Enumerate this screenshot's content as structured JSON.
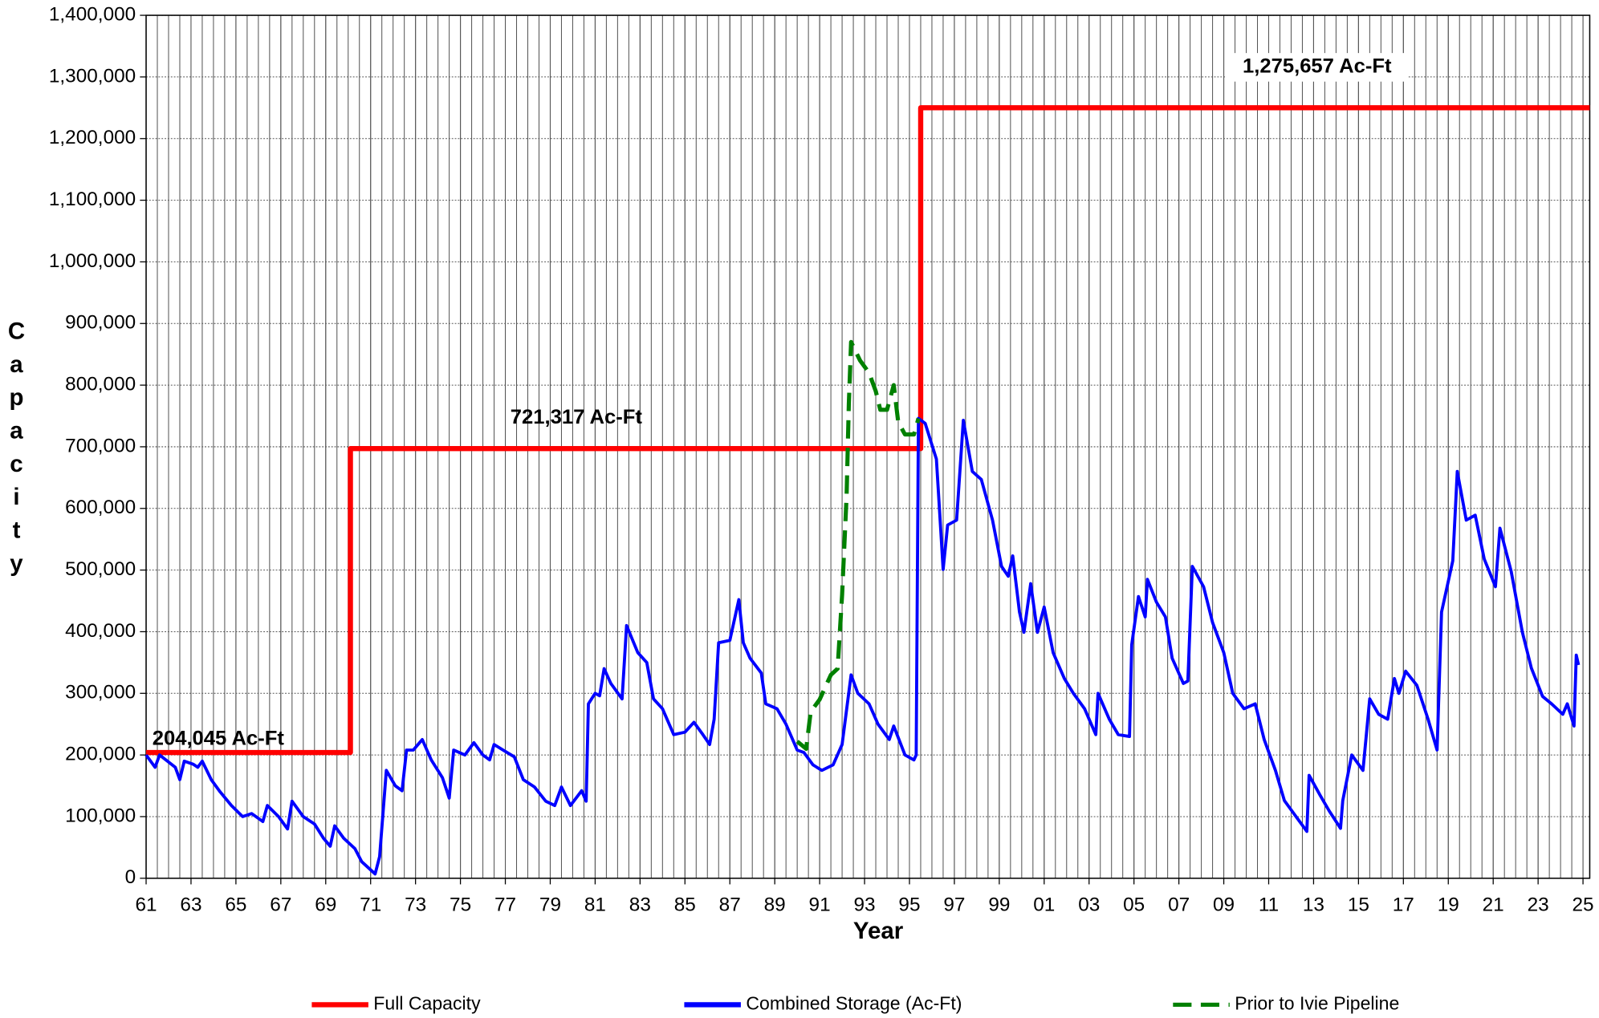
{
  "chart_data": {
    "type": "line",
    "xlabel": "Year",
    "ylabel": "Capacity",
    "xlim": [
      1961,
      2025.3
    ],
    "xticks": [
      {
        "value": 1961,
        "label": "61"
      },
      {
        "value": 1963,
        "label": "63"
      },
      {
        "value": 1965,
        "label": "65"
      },
      {
        "value": 1967,
        "label": "67"
      },
      {
        "value": 1969,
        "label": "69"
      },
      {
        "value": 1971,
        "label": "71"
      },
      {
        "value": 1973,
        "label": "73"
      },
      {
        "value": 1975,
        "label": "75"
      },
      {
        "value": 1977,
        "label": "77"
      },
      {
        "value": 1979,
        "label": "79"
      },
      {
        "value": 1981,
        "label": "81"
      },
      {
        "value": 1983,
        "label": "83"
      },
      {
        "value": 1985,
        "label": "85"
      },
      {
        "value": 1987,
        "label": "87"
      },
      {
        "value": 1989,
        "label": "89"
      },
      {
        "value": 1991,
        "label": "91"
      },
      {
        "value": 1993,
        "label": "93"
      },
      {
        "value": 1995,
        "label": "95"
      },
      {
        "value": 1997,
        "label": "97"
      },
      {
        "value": 1999,
        "label": "99"
      },
      {
        "value": 2001,
        "label": "01"
      },
      {
        "value": 2003,
        "label": "03"
      },
      {
        "value": 2005,
        "label": "05"
      },
      {
        "value": 2007,
        "label": "07"
      },
      {
        "value": 2009,
        "label": "09"
      },
      {
        "value": 2011,
        "label": "11"
      },
      {
        "value": 2013,
        "label": "13"
      },
      {
        "value": 2015,
        "label": "15"
      },
      {
        "value": 2017,
        "label": "17"
      },
      {
        "value": 2019,
        "label": "19"
      },
      {
        "value": 2021,
        "label": "21"
      },
      {
        "value": 2023,
        "label": "23"
      },
      {
        "value": 2025,
        "label": "25"
      }
    ],
    "ylim": [
      0,
      1400000
    ],
    "yticks": [
      0,
      {
        "value": 100000,
        "label": "100,000"
      },
      {
        "value": 200000,
        "label": "200,000"
      },
      {
        "value": 300000,
        "label": "300,000"
      },
      {
        "value": 400000,
        "label": "400,000"
      },
      {
        "value": 500000,
        "label": "500,000"
      },
      {
        "value": 600000,
        "label": "600,000"
      },
      {
        "value": 700000,
        "label": "700,000"
      },
      {
        "value": 800000,
        "label": "800,000"
      },
      {
        "value": 900000,
        "label": "900,000"
      },
      {
        "value": 1000000,
        "label": "1,000,000"
      },
      {
        "value": 1100000,
        "label": "1,100,000"
      },
      {
        "value": 1200000,
        "label": "1,200,000"
      },
      {
        "value": 1300000,
        "label": "1,300,000"
      },
      {
        "value": 1400000,
        "label": "1,400,000"
      }
    ],
    "grid": true,
    "legend": "bottom",
    "annotations": [
      "204,045 Ac-Ft",
      "721,317 Ac-Ft",
      "1,275,657 Ac-Ft"
    ],
    "series": [
      {
        "name": "Full Capacity",
        "color": "#ff0000",
        "dash": false,
        "x": [
          1961,
          1970.1,
          1970.1,
          1995.5,
          1995.5,
          2025.3
        ],
        "values": [
          204000,
          204000,
          697000,
          697000,
          1250000,
          1250000
        ]
      },
      {
        "name": "Combined Storage (Ac-Ft)",
        "color": "#0000ff",
        "dash": false,
        "x": [
          1961.0,
          1961.4,
          1961.6,
          1962.3,
          1962.5,
          1962.7,
          1963.1,
          1963.3,
          1963.5,
          1963.9,
          1964.3,
          1964.8,
          1965.3,
          1965.7,
          1966.2,
          1966.4,
          1966.9,
          1967.3,
          1967.5,
          1968.0,
          1968.5,
          1968.9,
          1969.2,
          1969.4,
          1969.8,
          1970.3,
          1970.6,
          1971.2,
          1971.4,
          1971.7,
          1972.1,
          1972.4,
          1972.6,
          1972.9,
          1973.3,
          1973.7,
          1974.2,
          1974.5,
          1974.7,
          1975.2,
          1975.6,
          1976.0,
          1976.3,
          1976.5,
          1976.9,
          1977.4,
          1977.8,
          1978.3,
          1978.8,
          1979.2,
          1979.5,
          1979.9,
          1980.4,
          1980.6,
          1980.7,
          1981.0,
          1981.2,
          1981.4,
          1981.7,
          1982.2,
          1982.4,
          1982.9,
          1983.3,
          1983.6,
          1984.0,
          1984.5,
          1985.0,
          1985.4,
          1985.8,
          1986.1,
          1986.3,
          1986.5,
          1987.0,
          1987.4,
          1987.6,
          1987.9,
          1988.4,
          1988.6,
          1989.1,
          1989.5,
          1990.0,
          1990.3,
          1990.7,
          1991.1,
          1991.6,
          1992.0,
          1992.4,
          1992.7,
          1993.2,
          1993.6,
          1994.1,
          1994.3,
          1994.8,
          1995.2,
          1995.3,
          1995.4,
          1995.7,
          1996.2,
          1996.5,
          1996.7,
          1997.1,
          1997.4,
          1997.8,
          1998.2,
          1998.7,
          1999.1,
          1999.4,
          1999.6,
          1999.9,
          2000.1,
          2000.4,
          2000.7,
          2001.0,
          2001.4,
          2001.9,
          2002.3,
          2002.8,
          2003.3,
          2003.4,
          2003.9,
          2004.3,
          2004.8,
          2004.9,
          2005.2,
          2005.5,
          2005.6,
          2006.0,
          2006.4,
          2006.7,
          2007.2,
          2007.4,
          2007.6,
          2008.1,
          2008.5,
          2009.0,
          2009.4,
          2009.9,
          2010.4,
          2010.8,
          2011.3,
          2011.7,
          2012.2,
          2012.7,
          2012.8,
          2013.3,
          2013.7,
          2014.2,
          2014.3,
          2014.7,
          2015.2,
          2015.5,
          2015.9,
          2016.3,
          2016.6,
          2016.8,
          2017.1,
          2017.6,
          2018.1,
          2018.5,
          2018.7,
          2019.2,
          2019.4,
          2019.8,
          2020.2,
          2020.6,
          2021.1,
          2021.3,
          2021.8,
          2022.3,
          2022.7,
          2023.2,
          2023.6,
          2024.1,
          2024.3,
          2024.6,
          2024.7,
          2024.8
        ],
        "values": [
          200000,
          180000,
          200000,
          180000,
          160000,
          190000,
          185000,
          180000,
          190000,
          160000,
          140000,
          118000,
          100000,
          105000,
          92000,
          118000,
          100000,
          80000,
          125000,
          100000,
          88000,
          65000,
          52000,
          85000,
          65000,
          48000,
          27000,
          7000,
          35000,
          175000,
          150000,
          142000,
          208000,
          208000,
          225000,
          192000,
          163000,
          130000,
          208000,
          200000,
          220000,
          200000,
          192000,
          217000,
          208000,
          197000,
          160000,
          148000,
          125000,
          118000,
          148000,
          118000,
          142000,
          125000,
          283000,
          300000,
          296000,
          340000,
          316000,
          291000,
          410000,
          366000,
          350000,
          291000,
          275000,
          233000,
          237000,
          253000,
          233000,
          217000,
          258000,
          382000,
          386000,
          452000,
          382000,
          357000,
          333000,
          283000,
          275000,
          250000,
          208000,
          204000,
          184000,
          175000,
          184000,
          217000,
          330000,
          300000,
          283000,
          250000,
          225000,
          247000,
          200000,
          192000,
          200000,
          746000,
          738000,
          680000,
          501000,
          573000,
          581000,
          743000,
          660000,
          647000,
          581000,
          506000,
          490000,
          523000,
          432000,
          399000,
          478000,
          399000,
          440000,
          366000,
          324000,
          300000,
          275000,
          233000,
          300000,
          258000,
          233000,
          230000,
          379000,
          457000,
          424000,
          485000,
          448000,
          424000,
          357000,
          316000,
          320000,
          506000,
          473000,
          415000,
          366000,
          300000,
          275000,
          283000,
          225000,
          175000,
          126000,
          101000,
          76000,
          167000,
          134000,
          109000,
          81000,
          126000,
          200000,
          175000,
          291000,
          266000,
          258000,
          324000,
          300000,
          336000,
          313000,
          258000,
          208000,
          432000,
          515000,
          660000,
          581000,
          589000,
          518000,
          473000,
          568000,
          498000,
          399000,
          341000,
          295000,
          283000,
          266000,
          283000,
          247000,
          362000,
          346000
        ]
      },
      {
        "name": "Prior to Ivie Pipeline",
        "color": "#008000",
        "dash": true,
        "x": [
          1990.0,
          1990.4,
          1990.6,
          1991.0,
          1991.5,
          1991.8,
          1992.0,
          1992.2,
          1992.3,
          1992.4,
          1992.8,
          1993.2,
          1993.5,
          1993.7,
          1994.0,
          1994.3,
          1994.5,
          1994.8,
          1995.2,
          1995.4
        ],
        "values": [
          222000,
          210000,
          270000,
          290000,
          330000,
          340000,
          460000,
          620000,
          770000,
          870000,
          840000,
          820000,
          790000,
          760000,
          760000,
          800000,
          740000,
          720000,
          720000,
          746000
        ]
      }
    ]
  }
}
